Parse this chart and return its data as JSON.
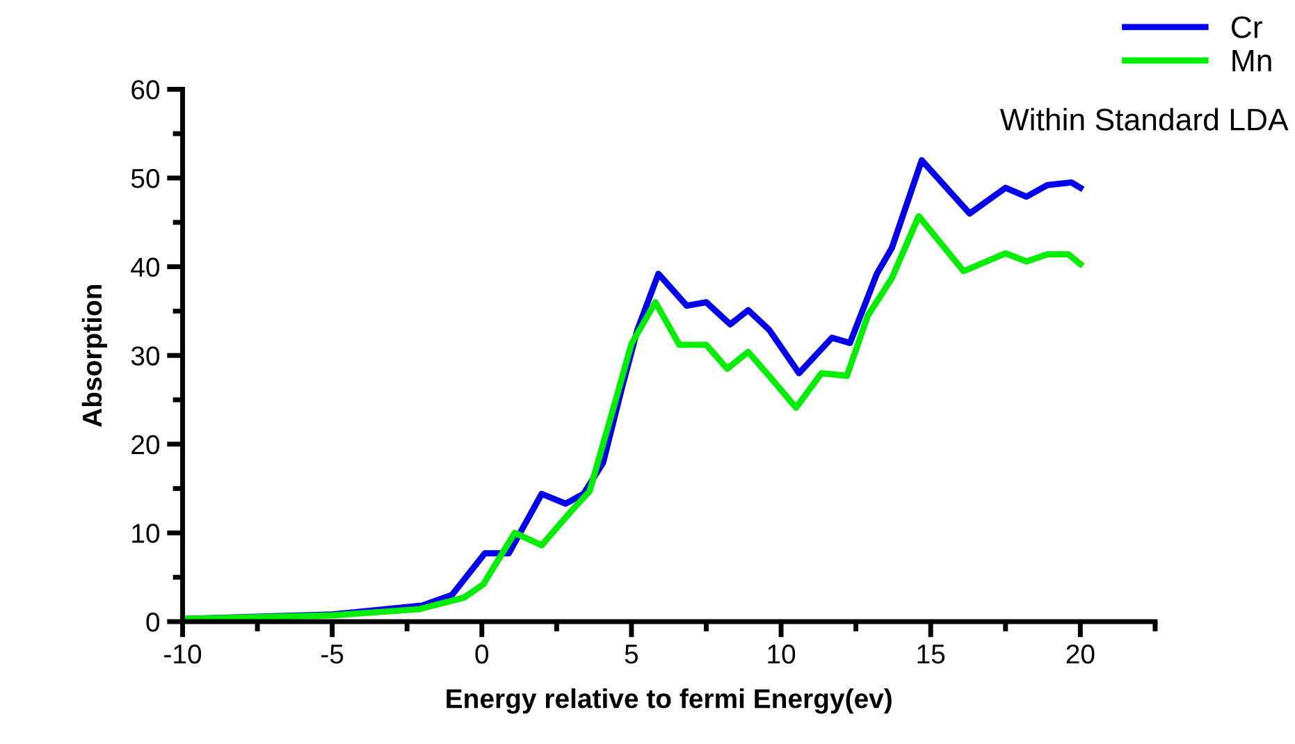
{
  "chart_data": {
    "type": "line",
    "xlabel": "Energy relative to fermi Energy(ev)",
    "ylabel": "Absorption",
    "xlim": [
      -10,
      22.5
    ],
    "xticks": [
      -10,
      -5,
      0,
      5,
      10,
      15,
      20
    ],
    "ylim": [
      0,
      60
    ],
    "yticks": [
      0,
      10,
      20,
      30,
      40,
      50,
      60
    ],
    "grid": false,
    "legend": "top right",
    "marker": "none",
    "line_style": "solid",
    "annotations": [
      "Within Standard LDA"
    ],
    "series": [
      {
        "name": "Cr",
        "color": "#0000ee",
        "x": [
          -10,
          -5,
          -2,
          -1,
          -0.6,
          0.1,
          0.9,
          2.0,
          2.8,
          3.4,
          4.05,
          4.7,
          5.2,
          5.9,
          6.85,
          7.5,
          8.3,
          8.9,
          9.6,
          10.6,
          11.7,
          12.3,
          13.2,
          13.7,
          14.7,
          16.3,
          17.5,
          18.2,
          18.9,
          19.7,
          20
        ],
        "values": [
          0.3,
          0.8,
          1.8,
          3,
          4.7,
          7.7,
          7.7,
          14.4,
          13.3,
          14.4,
          17.9,
          26.6,
          32.9,
          39.2,
          35.6,
          36.0,
          33.5,
          35.1,
          32.9,
          28.0,
          32.0,
          31.4,
          39.2,
          42.1,
          52.0,
          46.0,
          48.9,
          47.9,
          49.2,
          49.5,
          48.9
        ]
      },
      {
        "name": "Mn",
        "color": "#00ee00",
        "x": [
          -10,
          -5,
          -2.1,
          -0.6,
          0.05,
          1.1,
          2.0,
          3.0,
          3.6,
          4.4,
          5.0,
          5.8,
          6.6,
          7.5,
          8.2,
          8.9,
          9.7,
          10.5,
          11.35,
          12.2,
          12.9,
          13.7,
          14.6,
          16.1,
          17.5,
          18.2,
          18.9,
          19.6,
          20
        ],
        "values": [
          0.3,
          0.7,
          1.4,
          2.7,
          4.2,
          10.0,
          8.6,
          12.5,
          14.7,
          24.1,
          31.3,
          36.0,
          31.2,
          31.2,
          28.5,
          30.4,
          27.3,
          24.1,
          28.0,
          27.7,
          34.5,
          38.7,
          45.7,
          39.5,
          41.5,
          40.6,
          41.4,
          41.4,
          40.3
        ]
      }
    ]
  }
}
